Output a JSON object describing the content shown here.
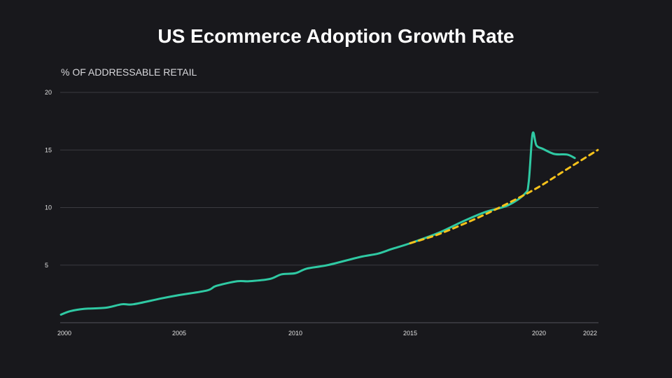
{
  "chart_data": {
    "type": "line",
    "title": "US Ecommerce Adoption Growth Rate",
    "ylabel": "% OF ADDRESSABLE RETAIL",
    "xlabel": "",
    "ylim": [
      0,
      20
    ],
    "yticks": [
      5,
      10,
      15,
      20
    ],
    "xticks": [
      2000,
      2005,
      2010,
      2015,
      2020,
      2022
    ],
    "grid": true,
    "colors": {
      "background": "#18181c",
      "actual": "#2fc9a3",
      "trend": "#f6c21b",
      "grid": "#3a3a40"
    },
    "series": [
      {
        "style": "solid",
        "x": [
          1999.85,
          2000.25,
          2000.85,
          2001.8,
          2002.5,
          2003,
          2004.2,
          2005,
          2006.2,
          2006.6,
          2007.5,
          2008,
          2008.9,
          2009.4,
          2010,
          2010.5,
          2011.4,
          2012.8,
          2013.6,
          2014.2,
          2015,
          2016.1,
          2017,
          2017.9,
          2018.8,
          2019.45,
          2019.6,
          2019.75,
          2019.9,
          2020.15,
          2020.6,
          2021.1,
          2021.4
        ],
        "y": [
          0.7,
          1.0,
          1.2,
          1.3,
          1.6,
          1.6,
          2.1,
          2.4,
          2.8,
          3.2,
          3.6,
          3.6,
          3.8,
          4.2,
          4.3,
          4.7,
          5.0,
          5.7,
          6.0,
          6.4,
          6.9,
          7.8,
          8.75,
          9.6,
          10.2,
          11.2,
          12.2,
          16.4,
          15.4,
          15.1,
          14.65,
          14.6,
          14.3
        ]
      },
      {
        "style": "dashed",
        "x": [
          2015,
          2016,
          2017,
          2018,
          2019,
          2020,
          2021,
          2022.3
        ],
        "y": [
          6.9,
          7.6,
          8.5,
          9.5,
          10.6,
          11.8,
          13.2,
          15.0
        ]
      }
    ]
  }
}
